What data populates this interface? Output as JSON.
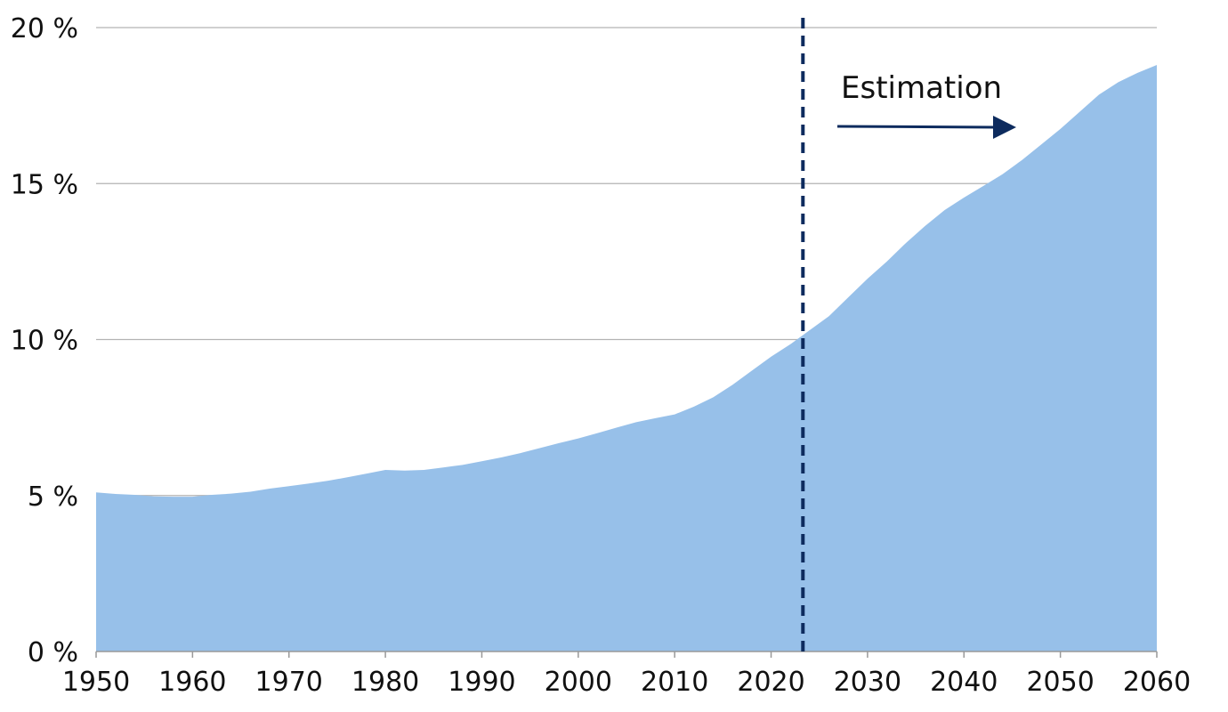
{
  "chart_data": {
    "type": "area",
    "title": "",
    "xlabel": "",
    "ylabel": "",
    "xlim": [
      1950,
      2060
    ],
    "ylim": [
      0,
      20
    ],
    "x_ticks": [
      1950,
      1960,
      1970,
      1980,
      1990,
      2000,
      2010,
      2020,
      2030,
      2040,
      2050,
      2060
    ],
    "x_tick_labels": [
      "1950",
      "1960",
      "1970",
      "1980",
      "1990",
      "2000",
      "2010",
      "2020",
      "2030",
      "2040",
      "2050",
      "2060"
    ],
    "y_ticks": [
      0,
      5,
      10,
      15,
      20
    ],
    "y_tick_labels": [
      "0 %",
      "5 %",
      "10 %",
      "15 %",
      "20 %"
    ],
    "grid": "horizontal",
    "x": [
      1950,
      1952,
      1954,
      1956,
      1958,
      1960,
      1962,
      1964,
      1966,
      1968,
      1970,
      1972,
      1974,
      1976,
      1978,
      1980,
      1982,
      1984,
      1986,
      1988,
      1990,
      1992,
      1994,
      1996,
      1998,
      2000,
      2002,
      2004,
      2006,
      2008,
      2010,
      2012,
      2014,
      2016,
      2018,
      2020,
      2022,
      2024,
      2026,
      2028,
      2030,
      2032,
      2034,
      2036,
      2038,
      2040,
      2042,
      2044,
      2046,
      2048,
      2050,
      2052,
      2054,
      2056,
      2058,
      2060
    ],
    "series": [
      {
        "values": [
          5.1,
          5.05,
          5.02,
          4.97,
          4.96,
          4.96,
          5.02,
          5.06,
          5.12,
          5.22,
          5.3,
          5.38,
          5.47,
          5.58,
          5.7,
          5.82,
          5.8,
          5.82,
          5.9,
          5.98,
          6.1,
          6.22,
          6.36,
          6.52,
          6.68,
          6.83,
          7.0,
          7.18,
          7.35,
          7.48,
          7.6,
          7.85,
          8.15,
          8.55,
          9.0,
          9.45,
          9.85,
          10.3,
          10.75,
          11.35,
          11.95,
          12.5,
          13.1,
          13.65,
          14.15,
          14.55,
          14.92,
          15.3,
          15.75,
          16.25,
          16.75,
          17.3,
          17.85,
          18.25,
          18.55,
          18.8
        ],
        "color": "#97c0e9"
      }
    ],
    "reference_line": {
      "x": 2023.3,
      "style": "dashed",
      "color": "#0d2b5e"
    },
    "annotation": {
      "text": "Estimation",
      "arrow": "right",
      "color": "#0d2b5e"
    },
    "colors": {
      "area": "#97c0e9",
      "grid": "#b3b3b3",
      "axis": "#999999",
      "reference": "#0d2b5e",
      "text": "#111111"
    }
  }
}
